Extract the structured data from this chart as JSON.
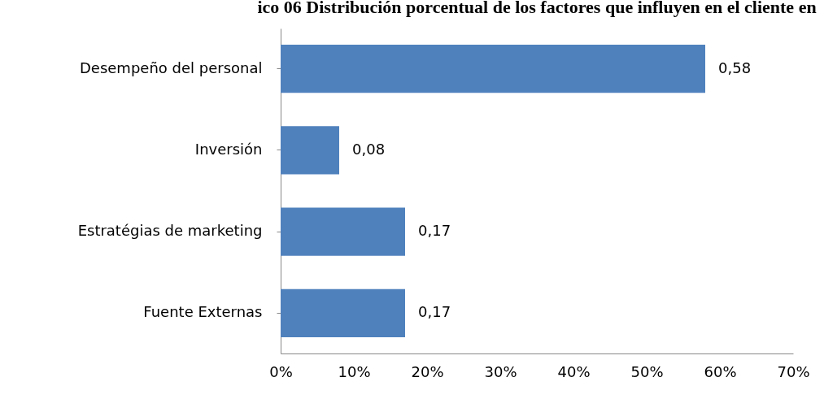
{
  "chart_data": {
    "type": "bar",
    "orientation": "horizontal",
    "title": "ico 06 Distribución porcentual de los factores que influyen en el cliente en",
    "categories": [
      "Desempeño del personal",
      "Inversión",
      "Estratégias de marketing",
      "Fuente Externas"
    ],
    "values": [
      0.58,
      0.08,
      0.17,
      0.17
    ],
    "value_labels": [
      "0,58",
      "0,08",
      "0,17",
      "0,17"
    ],
    "color": "#4f81bd",
    "xlim": [
      0,
      0.7
    ],
    "xticks": [
      {
        "value": 0,
        "label": "0%"
      },
      {
        "value": 0.1,
        "label": "10%"
      },
      {
        "value": 0.2,
        "label": "20%"
      },
      {
        "value": 0.3,
        "label": "30%"
      },
      {
        "value": 0.4,
        "label": "40%"
      },
      {
        "value": 0.5,
        "label": "50%"
      },
      {
        "value": 0.6,
        "label": "60%"
      },
      {
        "value": 0.7,
        "label": "70%"
      }
    ],
    "grid": false
  }
}
